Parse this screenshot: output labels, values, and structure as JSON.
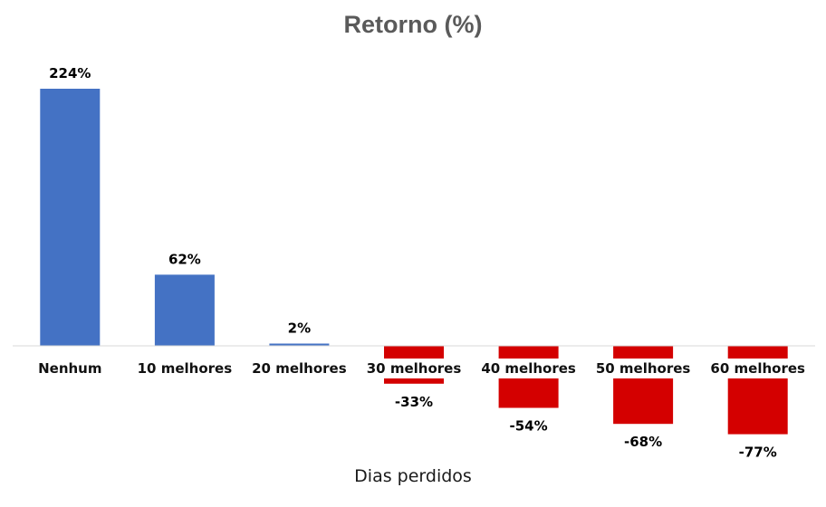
{
  "chart_data": {
    "type": "bar",
    "title": "Retorno (%)",
    "xlabel": "Dias perdidos",
    "ylabel": "",
    "categories": [
      "Nenhum",
      "10 melhores",
      "20 melhores",
      "30 melhores",
      "40 melhores",
      "50 melhores",
      "60 melhores"
    ],
    "values": [
      224,
      62,
      2,
      -33,
      -54,
      -68,
      -77
    ],
    "value_labels": [
      "224%",
      "62%",
      "2%",
      "-33%",
      "-54%",
      "-68%",
      "-77%"
    ],
    "ylim": [
      -80,
      230
    ],
    "grid": false,
    "legend": "none",
    "colors": {
      "positive": "#4472c4",
      "negative": "#d40000",
      "axis": "#d9d9d9"
    }
  }
}
